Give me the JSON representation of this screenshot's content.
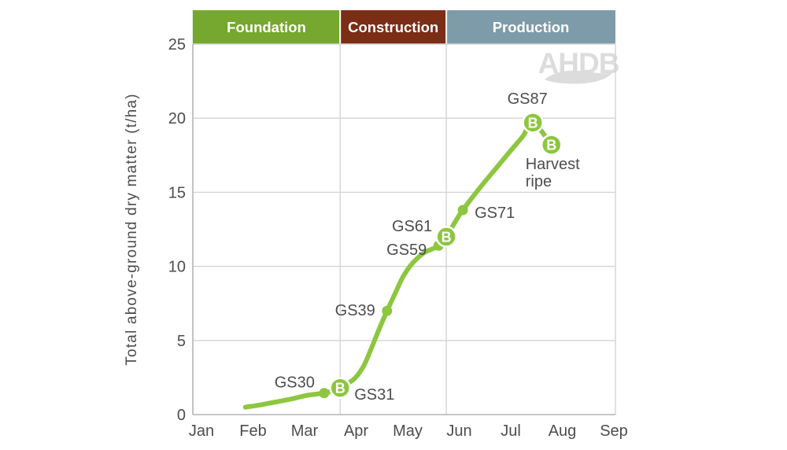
{
  "chart_data": {
    "type": "line",
    "title": "",
    "xlabel": "",
    "ylabel": "Total above-ground dry matter (t/ha)",
    "x_tick_labels": [
      "Jan",
      "Feb",
      "Mar",
      "Apr",
      "May",
      "Jun",
      "Jul",
      "Aug",
      "Sep"
    ],
    "x_domain_months": [
      -0.17,
      8.03
    ],
    "ylim": [
      0,
      25
    ],
    "y_ticks": [
      0,
      5,
      10,
      15,
      20,
      25
    ],
    "grid": "horizontal gridlines at each y tick; vertical lines at growth-phase boundaries",
    "legend": "none",
    "watermark": "AHDB",
    "benchmark_letter": "B",
    "phases": [
      {
        "label": "Foundation",
        "x_start": -0.17,
        "x_end": 2.69,
        "color": "#76a72e"
      },
      {
        "label": "Construction",
        "x_start": 2.69,
        "x_end": 4.75,
        "color": "#7b2d15"
      },
      {
        "label": "Production",
        "x_start": 4.75,
        "x_end": 8.03,
        "color": "#7e9baa"
      }
    ],
    "series": [
      {
        "name": "Total above-ground dry matter",
        "color": "#8dc63f",
        "curve": [
          [
            0.85,
            0.5
          ],
          [
            1.13,
            0.65
          ],
          [
            1.44,
            0.85
          ],
          [
            1.74,
            1.05
          ],
          [
            2.05,
            1.3
          ],
          [
            2.38,
            1.45
          ],
          [
            2.53,
            1.6
          ],
          [
            2.69,
            1.8
          ],
          [
            2.84,
            2.1
          ],
          [
            2.99,
            2.5
          ],
          [
            3.15,
            3.3
          ],
          [
            3.3,
            4.5
          ],
          [
            3.45,
            5.8
          ],
          [
            3.6,
            7.0
          ],
          [
            3.76,
            8.2
          ],
          [
            3.91,
            9.3
          ],
          [
            4.09,
            10.2
          ],
          [
            4.31,
            10.9
          ],
          [
            4.46,
            11.15
          ],
          [
            4.6,
            11.4
          ],
          [
            4.75,
            12.0
          ],
          [
            4.92,
            13.0
          ],
          [
            5.07,
            13.8
          ],
          [
            5.4,
            15.3
          ],
          [
            5.71,
            16.6
          ],
          [
            6.02,
            17.9
          ],
          [
            6.24,
            18.8
          ],
          [
            6.43,
            19.7
          ],
          [
            6.79,
            18.2
          ]
        ],
        "labeled_points": [
          {
            "label": "GS30",
            "x": 2.38,
            "y": 1.45,
            "marker": "dot"
          },
          {
            "label": "GS31",
            "x": 2.69,
            "y": 1.8,
            "marker": "benchmark"
          },
          {
            "label": "GS39",
            "x": 3.6,
            "y": 7.0,
            "marker": "dot"
          },
          {
            "label": "GS59",
            "x": 4.6,
            "y": 11.4,
            "marker": "dot"
          },
          {
            "label": "GS61",
            "x": 4.75,
            "y": 12.0,
            "marker": "benchmark"
          },
          {
            "label": "GS71",
            "x": 5.07,
            "y": 13.8,
            "marker": "dot"
          },
          {
            "label": "GS87",
            "x": 6.43,
            "y": 19.7,
            "marker": "benchmark"
          },
          {
            "label": "Harvest ripe",
            "x": 6.79,
            "y": 18.2,
            "marker": "benchmark"
          }
        ]
      }
    ]
  },
  "colors": {
    "line_green": "#8dc63f",
    "foundation_green": "#76a72e",
    "construction_brown": "#7b2d15",
    "production_slate": "#7e9baa",
    "gridline": "#d4d4d6",
    "axis": "#b4b4b8",
    "right_border": "#d4d4d6",
    "label_text": "#4c4d4f",
    "band_text": "#ffffff",
    "marker_letter": "#ffffff",
    "watermark": "#dcdcdc"
  }
}
